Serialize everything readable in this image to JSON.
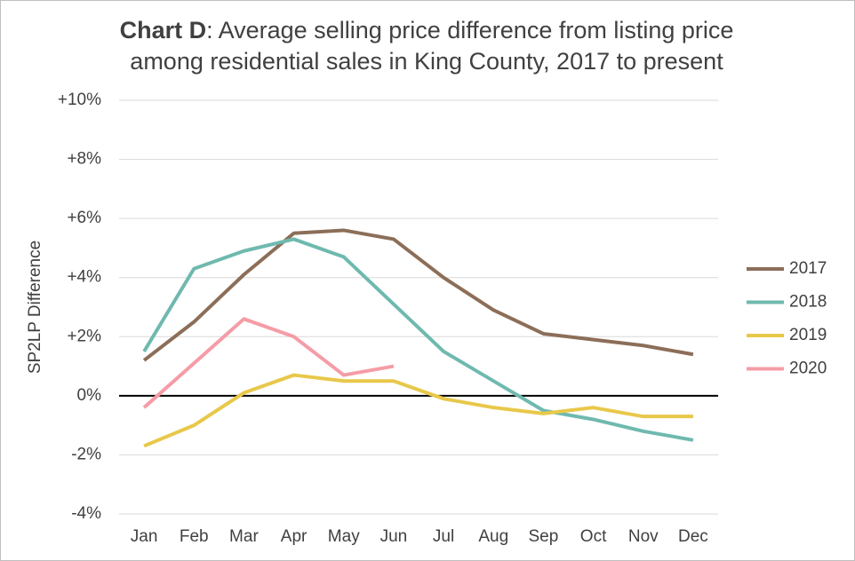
{
  "chart_data": {
    "type": "line",
    "title": [
      "Chart D",
      ": Average selling price difference from listing price",
      "among residential sales in King County, 2017 to present"
    ],
    "y_label": "SP2LP Difference",
    "categories": [
      "Jan",
      "Feb",
      "Mar",
      "Apr",
      "May",
      "Jun",
      "Jul",
      "Aug",
      "Sep",
      "Oct",
      "Nov",
      "Dec"
    ],
    "series": [
      {
        "name": "2017",
        "color": "#8c6e58",
        "values": [
          1.2,
          2.5,
          4.1,
          5.5,
          5.6,
          5.3,
          4.0,
          2.9,
          2.1,
          1.9,
          1.7,
          1.4
        ]
      },
      {
        "name": "2018",
        "color": "#6fb9af",
        "values": [
          1.5,
          4.3,
          4.9,
          5.3,
          4.7,
          3.1,
          1.5,
          0.5,
          -0.5,
          -0.8,
          -1.2,
          -1.5
        ]
      },
      {
        "name": "2019",
        "color": "#e8c84a",
        "values": [
          -1.7,
          -1.0,
          0.1,
          0.7,
          0.5,
          0.5,
          -0.1,
          -0.4,
          -0.6,
          -0.4,
          -0.7,
          -0.7
        ]
      },
      {
        "name": "2020",
        "color": "#f59ca6",
        "values": [
          -0.4,
          1.1,
          2.6,
          2.0,
          0.7,
          1.0,
          null,
          null,
          null,
          null,
          null,
          null
        ]
      }
    ],
    "ylim": [
      -4,
      10
    ],
    "yticks": [
      {
        "value": -4,
        "label": "-4%"
      },
      {
        "value": -2,
        "label": "-2%"
      },
      {
        "value": 0,
        "label": "0%"
      },
      {
        "value": 2,
        "label": "+2%"
      },
      {
        "value": 4,
        "label": "+4%"
      },
      {
        "value": 6,
        "label": "+6%"
      },
      {
        "value": 8,
        "label": "+8%"
      },
      {
        "value": 10,
        "label": "+10%"
      }
    ],
    "grid": true,
    "legend": "right"
  }
}
